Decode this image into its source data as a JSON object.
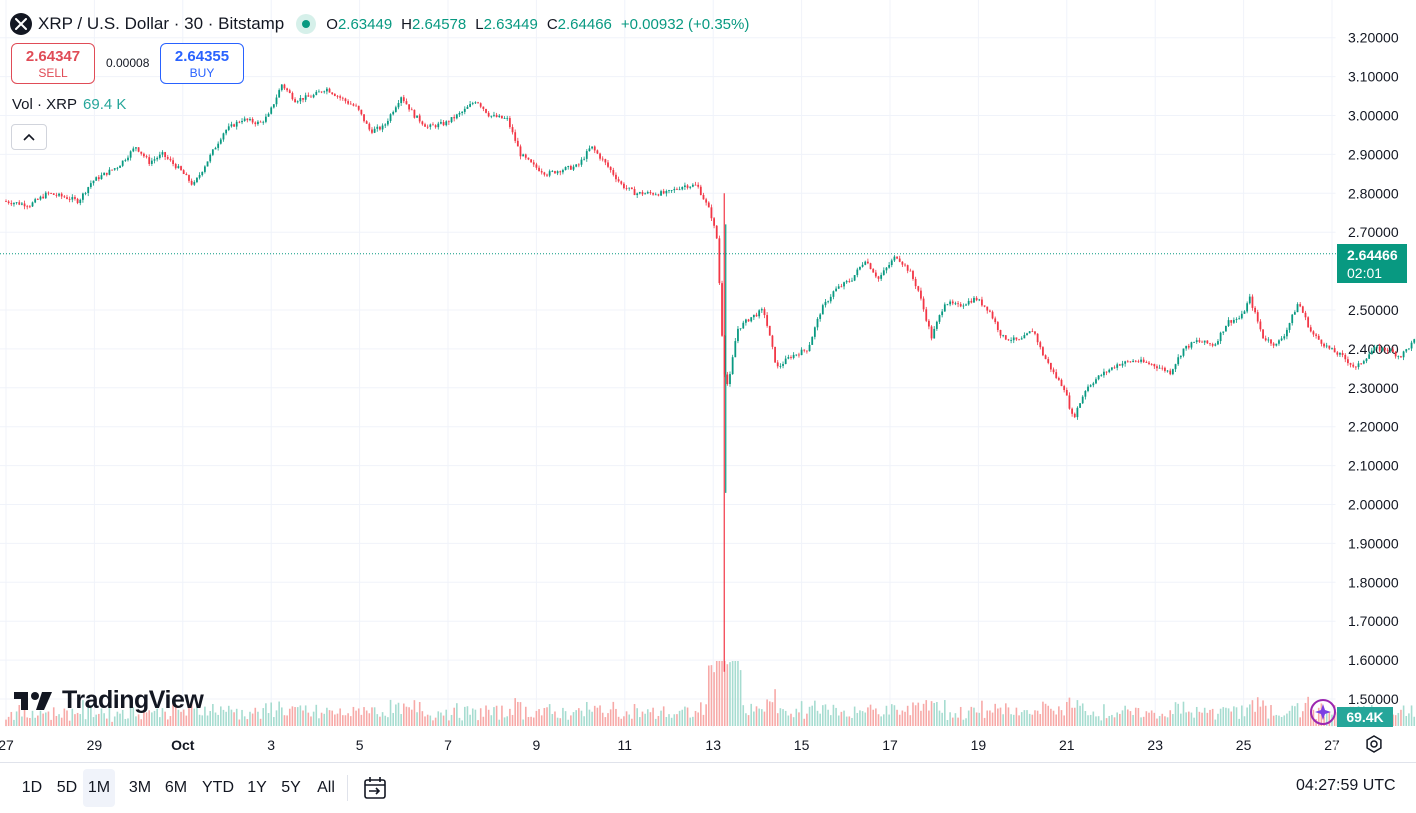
{
  "header": {
    "title": "XRP / U.S. Dollar · 30 · Bitstamp",
    "ohlc": {
      "open_label": "O",
      "open": "2.63449",
      "high_label": "H",
      "high": "2.64578",
      "low_label": "L",
      "low": "2.63449",
      "close_label": "C",
      "close": "2.64466",
      "change": "+0.00932 (+0.35%)"
    }
  },
  "trade": {
    "sell_price": "2.64347",
    "sell_label": "SELL",
    "spread": "0.00008",
    "buy_price": "2.64355",
    "buy_label": "BUY"
  },
  "volume": {
    "label": "Vol · XRP",
    "value": "69.4 K"
  },
  "price_tag": {
    "price": "2.64466",
    "countdown": "02:01"
  },
  "volume_tag": "69.4K",
  "branding": "TradingView",
  "ranges": [
    {
      "label": "1D",
      "active": false
    },
    {
      "label": "5D",
      "active": false
    },
    {
      "label": "1M",
      "active": true
    },
    {
      "label": "3M",
      "active": false
    },
    {
      "label": "6M",
      "active": false
    },
    {
      "label": "YTD",
      "active": false
    },
    {
      "label": "1Y",
      "active": false
    },
    {
      "label": "5Y",
      "active": false
    },
    {
      "label": "All",
      "active": false
    }
  ],
  "clock": "04:27:59 UTC",
  "colors": {
    "up": "#089981",
    "down": "#f23645",
    "vol_up": "#26a69a",
    "vol_down": "#ef5350",
    "last_price_line": "#089981"
  },
  "chart_data": {
    "type": "candlestick",
    "symbol": "XRP / U.S. Dollar",
    "interval": "30",
    "exchange": "Bitstamp",
    "y_ticks": [
      "3.20000",
      "3.10000",
      "3.00000",
      "2.90000",
      "2.80000",
      "2.70000",
      "2.50000",
      "2.40000",
      "2.30000",
      "2.20000",
      "2.10000",
      "2.00000",
      "1.90000",
      "1.80000",
      "1.70000",
      "1.60000",
      "1.50000"
    ],
    "y_range": [
      1.44,
      3.25
    ],
    "x_ticks": [
      "27",
      "29",
      "Oct",
      "3",
      "5",
      "7",
      "9",
      "11",
      "13",
      "15",
      "17",
      "19",
      "21",
      "23",
      "25",
      "27"
    ],
    "last_price": 2.64466,
    "grid": true,
    "price_path": [
      {
        "day": -1.0,
        "price": 2.78
      },
      {
        "day": -0.4,
        "price": 2.77
      },
      {
        "day": 0.0,
        "price": 2.8
      },
      {
        "day": 0.4,
        "price": 2.79
      },
      {
        "day": 0.7,
        "price": 2.78
      },
      {
        "day": 1.0,
        "price": 2.83
      },
      {
        "day": 1.3,
        "price": 2.85
      },
      {
        "day": 1.6,
        "price": 2.87
      },
      {
        "day": 2.0,
        "price": 2.92
      },
      {
        "day": 2.3,
        "price": 2.88
      },
      {
        "day": 2.6,
        "price": 2.9
      },
      {
        "day": 3.0,
        "price": 2.86
      },
      {
        "day": 3.3,
        "price": 2.82
      },
      {
        "day": 3.6,
        "price": 2.88
      },
      {
        "day": 4.0,
        "price": 2.96
      },
      {
        "day": 4.4,
        "price": 2.99
      },
      {
        "day": 4.8,
        "price": 2.98
      },
      {
        "day": 5.0,
        "price": 3.0
      },
      {
        "day": 5.3,
        "price": 3.08
      },
      {
        "day": 5.6,
        "price": 3.04
      },
      {
        "day": 6.0,
        "price": 3.05
      },
      {
        "day": 6.3,
        "price": 3.07
      },
      {
        "day": 6.7,
        "price": 3.04
      },
      {
        "day": 7.0,
        "price": 3.02
      },
      {
        "day": 7.3,
        "price": 2.96
      },
      {
        "day": 7.6,
        "price": 2.97
      },
      {
        "day": 8.0,
        "price": 3.05
      },
      {
        "day": 8.3,
        "price": 3.0
      },
      {
        "day": 8.6,
        "price": 2.97
      },
      {
        "day": 9.0,
        "price": 2.98
      },
      {
        "day": 9.4,
        "price": 3.01
      },
      {
        "day": 9.7,
        "price": 3.04
      },
      {
        "day": 10.0,
        "price": 3.0
      },
      {
        "day": 10.4,
        "price": 2.99
      },
      {
        "day": 10.7,
        "price": 2.9
      },
      {
        "day": 11.0,
        "price": 2.87
      },
      {
        "day": 11.3,
        "price": 2.85
      },
      {
        "day": 11.6,
        "price": 2.86
      },
      {
        "day": 12.0,
        "price": 2.87
      },
      {
        "day": 12.3,
        "price": 2.92
      },
      {
        "day": 12.6,
        "price": 2.88
      },
      {
        "day": 13.0,
        "price": 2.82
      },
      {
        "day": 13.3,
        "price": 2.8
      },
      {
        "day": 13.6,
        "price": 2.8
      },
      {
        "day": 14.0,
        "price": 2.8
      },
      {
        "day": 14.4,
        "price": 2.82
      },
      {
        "day": 14.7,
        "price": 2.82
      },
      {
        "day": 15.0,
        "price": 2.75
      },
      {
        "day": 15.15,
        "price": 2.68
      },
      {
        "day": 15.3,
        "price": 2.35
      },
      {
        "day": 15.4,
        "price": 2.3
      },
      {
        "day": 15.6,
        "price": 2.45
      },
      {
        "day": 15.9,
        "price": 2.48
      },
      {
        "day": 16.2,
        "price": 2.5
      },
      {
        "day": 16.5,
        "price": 2.35
      },
      {
        "day": 16.8,
        "price": 2.38
      },
      {
        "day": 17.2,
        "price": 2.4
      },
      {
        "day": 17.5,
        "price": 2.5
      },
      {
        "day": 17.8,
        "price": 2.55
      },
      {
        "day": 18.2,
        "price": 2.58
      },
      {
        "day": 18.5,
        "price": 2.63
      },
      {
        "day": 18.8,
        "price": 2.58
      },
      {
        "day": 19.2,
        "price": 2.64
      },
      {
        "day": 19.5,
        "price": 2.6
      },
      {
        "day": 19.7,
        "price": 2.55
      },
      {
        "day": 20.0,
        "price": 2.43
      },
      {
        "day": 20.3,
        "price": 2.52
      },
      {
        "day": 20.6,
        "price": 2.51
      },
      {
        "day": 21.0,
        "price": 2.53
      },
      {
        "day": 21.3,
        "price": 2.5
      },
      {
        "day": 21.6,
        "price": 2.43
      },
      {
        "day": 22.0,
        "price": 2.42
      },
      {
        "day": 22.3,
        "price": 2.45
      },
      {
        "day": 22.5,
        "price": 2.39
      },
      {
        "day": 22.8,
        "price": 2.33
      },
      {
        "day": 23.0,
        "price": 2.3
      },
      {
        "day": 23.2,
        "price": 2.22
      },
      {
        "day": 23.5,
        "price": 2.3
      },
      {
        "day": 23.8,
        "price": 2.33
      },
      {
        "day": 24.2,
        "price": 2.36
      },
      {
        "day": 24.6,
        "price": 2.37
      },
      {
        "day": 25.0,
        "price": 2.36
      },
      {
        "day": 25.4,
        "price": 2.34
      },
      {
        "day": 25.7,
        "price": 2.4
      },
      {
        "day": 26.0,
        "price": 2.42
      },
      {
        "day": 26.4,
        "price": 2.41
      },
      {
        "day": 26.7,
        "price": 2.47
      },
      {
        "day": 27.0,
        "price": 2.48
      },
      {
        "day": 27.2,
        "price": 2.53
      },
      {
        "day": 27.5,
        "price": 2.43
      },
      {
        "day": 27.8,
        "price": 2.41
      },
      {
        "day": 28.0,
        "price": 2.44
      },
      {
        "day": 28.3,
        "price": 2.52
      },
      {
        "day": 28.6,
        "price": 2.44
      },
      {
        "day": 29.0,
        "price": 2.4
      },
      {
        "day": 29.3,
        "price": 2.38
      },
      {
        "day": 29.6,
        "price": 2.35
      },
      {
        "day": 30.0,
        "price": 2.4
      },
      {
        "day": 30.3,
        "price": 2.4
      },
      {
        "day": 30.6,
        "price": 2.38
      },
      {
        "day": 31.0,
        "price": 2.43
      },
      {
        "day": 31.4,
        "price": 2.48
      },
      {
        "day": 31.7,
        "price": 2.53
      },
      {
        "day": 32.0,
        "price": 2.58
      },
      {
        "day": 32.3,
        "price": 2.62
      },
      {
        "day": 32.6,
        "price": 2.64
      },
      {
        "day": 33.0,
        "price": 2.63
      },
      {
        "day": 33.3,
        "price": 2.65
      },
      {
        "day": 33.5,
        "price": 2.62
      },
      {
        "day": 33.7,
        "price": 2.645
      }
    ],
    "flash_crash": {
      "day": 15.25,
      "high": 2.8,
      "low": 1.57
    }
  }
}
